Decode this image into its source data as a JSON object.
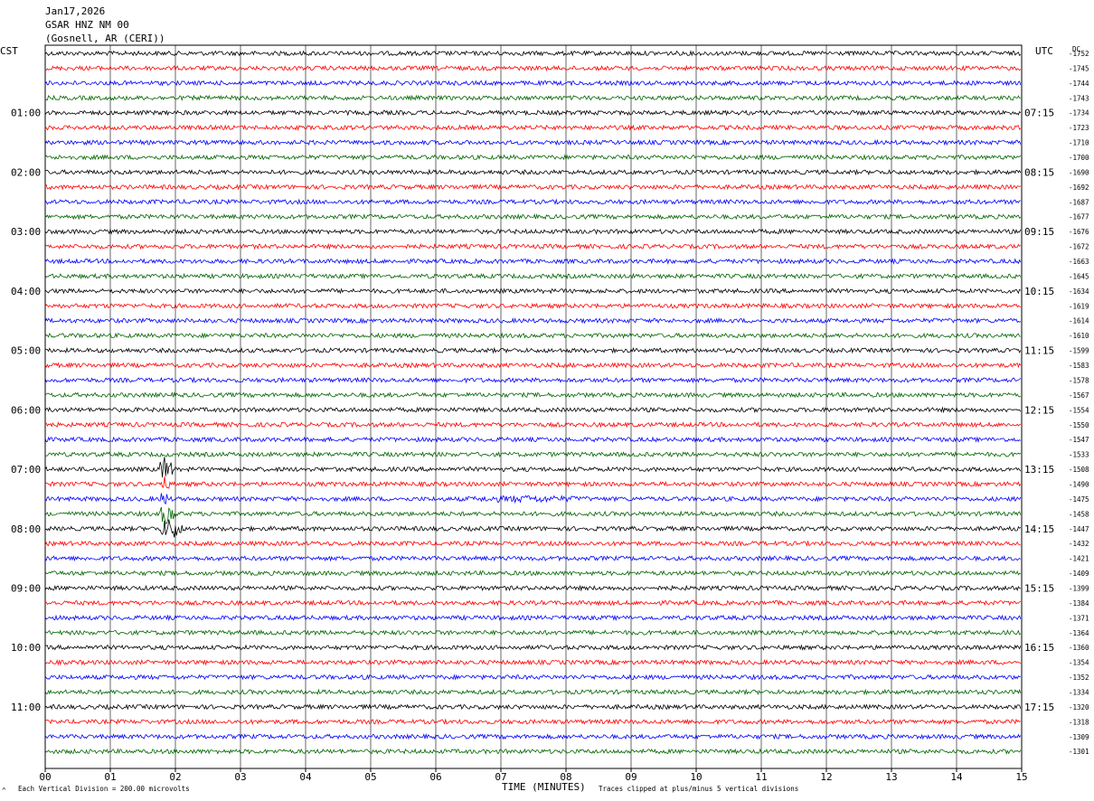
{
  "header": {
    "date": "Jan17,2026",
    "station": "GSAR HNZ NM 00",
    "location": "(Gosnell, AR (CERI))"
  },
  "left_zone": "CST",
  "right_zone": "UTC",
  "dc_label": "DC",
  "footer": {
    "scale_note": "Each Vertical Division =  200.00 microvolts",
    "clip_note": "Traces clipped at plus/minus 5 vertical divisions",
    "logo_mark": "^"
  },
  "colors": {
    "trace_cycle": [
      "#000000",
      "#ff0000",
      "#0000ff",
      "#006400"
    ],
    "grid": "#000000"
  },
  "chart_data": {
    "type": "line",
    "title": "",
    "xlabel": "TIME (MINUTES)",
    "ylabel": "",
    "xlim": [
      0,
      15
    ],
    "x_ticks": [
      "00",
      "01",
      "02",
      "03",
      "04",
      "05",
      "06",
      "07",
      "08",
      "09",
      "10",
      "11",
      "12",
      "13",
      "14",
      "15"
    ],
    "grid": true,
    "rows": 48,
    "minutes_per_row": 15,
    "left_hour_labels": [
      "01:00",
      "02:00",
      "03:00",
      "04:00",
      "05:00",
      "06:00",
      "07:00",
      "08:00",
      "09:00",
      "10:00",
      "11:00"
    ],
    "right_hour_labels": [
      "07:15",
      "08:15",
      "09:15",
      "10:15",
      "11:15",
      "12:15",
      "13:15",
      "14:15",
      "15:15",
      "16:15",
      "17:15"
    ],
    "dc_offsets": [
      -1752,
      -1745,
      -1744,
      -1743,
      -1734,
      -1723,
      -1710,
      -1700,
      -1690,
      -1692,
      -1687,
      -1677,
      -1676,
      -1672,
      -1663,
      -1645,
      -1634,
      -1619,
      -1614,
      -1610,
      -1599,
      -1583,
      -1578,
      -1567,
      -1554,
      -1550,
      -1547,
      -1533,
      -1508,
      -1490,
      -1475,
      -1458,
      -1447,
      -1432,
      -1421,
      -1409,
      -1399,
      -1384,
      -1371,
      -1364,
      -1360,
      -1354,
      -1352,
      -1334,
      -1320,
      -1318,
      -1309,
      -1301
    ],
    "events": [
      {
        "row": 28,
        "start_min": 1.75,
        "end_min": 1.95,
        "amplitude_div": 5,
        "color": "#000000",
        "label": ""
      },
      {
        "row": 29,
        "start_min": 1.75,
        "end_min": 1.9,
        "amplitude_div": 3,
        "color": "#ff0000",
        "label": ""
      },
      {
        "row": 30,
        "start_min": 1.75,
        "end_min": 1.9,
        "amplitude_div": 3,
        "color": "#0000ff",
        "label": ""
      },
      {
        "row": 31,
        "start_min": 1.75,
        "end_min": 2.0,
        "amplitude_div": 4,
        "color": "#006400",
        "label": ""
      },
      {
        "row": 32,
        "start_min": 1.75,
        "end_min": 2.1,
        "amplitude_div": 4,
        "color": "#000000",
        "label": ""
      },
      {
        "row": 30,
        "start_min": 6.2,
        "end_min": 8.6,
        "amplitude_div": 1.3,
        "color": "#0000ff",
        "label": ""
      }
    ]
  }
}
